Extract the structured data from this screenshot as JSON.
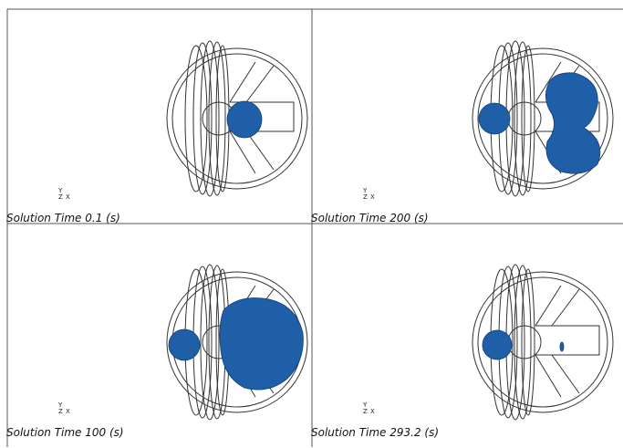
{
  "panels": [
    {
      "label": "Solution Time 0.1 (s)"
    },
    {
      "label": "Solution Time 200 (s)"
    },
    {
      "label": "Solution Time 100 (s)"
    },
    {
      "label": "Solution Time 293.2 (s)"
    }
  ],
  "triad": {
    "y": "Y",
    "z": "Z",
    "x": "X"
  }
}
